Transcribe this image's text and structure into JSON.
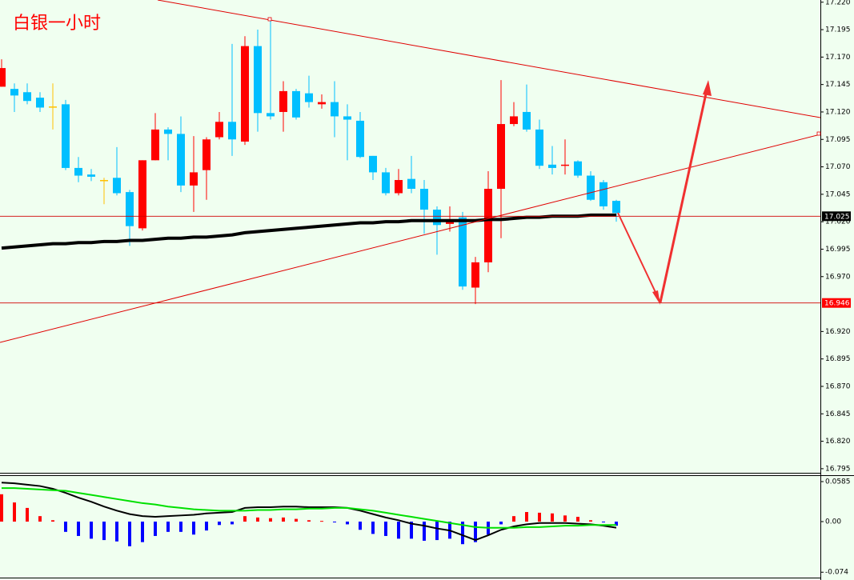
{
  "chart_data": [
    {
      "type": "candlestick",
      "title": "白银一小时",
      "open": [
        17.143,
        17.141,
        17.138,
        17.133,
        17.125,
        17.127,
        17.069,
        17.063,
        17.058,
        17.06,
        17.047,
        17.014,
        17.076,
        17.104,
        17.1,
        17.053,
        17.067,
        17.097,
        17.111,
        17.093,
        17.18,
        17.119,
        17.12,
        17.139,
        17.137,
        17.127,
        17.129,
        17.116,
        17.112,
        17.08,
        17.065,
        17.046,
        17.059,
        17.05,
        17.031,
        17.018,
        17.024,
        16.96,
        16.983,
        17.05,
        17.109,
        17.12,
        17.104,
        17.072,
        17.071,
        17.075,
        17.062,
        17.056,
        17.039
      ],
      "high": [
        17.168,
        17.146,
        17.146,
        17.138,
        17.146,
        17.131,
        17.079,
        17.068,
        17.06,
        17.088,
        17.049,
        17.076,
        17.119,
        17.106,
        17.116,
        17.098,
        17.097,
        17.12,
        17.182,
        17.189,
        17.195,
        17.204,
        17.148,
        17.141,
        17.153,
        17.136,
        17.148,
        17.127,
        17.12,
        17.08,
        17.069,
        17.068,
        17.08,
        17.058,
        17.034,
        17.034,
        17.029,
        16.988,
        17.066,
        17.149,
        17.129,
        17.145,
        17.113,
        17.089,
        17.095,
        17.076,
        17.066,
        17.058,
        17.04
      ],
      "low": [
        17.143,
        17.12,
        17.127,
        17.12,
        17.104,
        17.067,
        17.056,
        17.057,
        17.036,
        17.044,
        16.998,
        17.012,
        17.076,
        17.076,
        17.047,
        17.029,
        17.04,
        17.095,
        17.08,
        17.09,
        17.102,
        17.113,
        17.102,
        17.113,
        17.124,
        17.123,
        17.097,
        17.076,
        17.078,
        17.058,
        17.044,
        17.044,
        17.046,
        17.009,
        16.99,
        17.011,
        16.958,
        16.945,
        16.974,
        17.005,
        17.107,
        17.102,
        17.068,
        17.063,
        17.063,
        17.06,
        17.039,
        17.031,
        17.02
      ],
      "close": [
        17.16,
        17.135,
        17.13,
        17.124,
        17.125,
        17.069,
        17.062,
        17.061,
        17.058,
        17.046,
        17.016,
        17.076,
        17.104,
        17.1,
        17.053,
        17.065,
        17.095,
        17.111,
        17.095,
        17.18,
        17.119,
        17.116,
        17.139,
        17.115,
        17.129,
        17.129,
        17.116,
        17.113,
        17.079,
        17.065,
        17.046,
        17.058,
        17.05,
        17.031,
        17.017,
        17.022,
        16.961,
        16.983,
        17.05,
        17.109,
        17.116,
        17.104,
        17.071,
        17.069,
        17.072,
        17.062,
        17.04,
        17.034,
        17.028
      ],
      "up_color": "#ff0000",
      "down_color": "#00bfff",
      "doji_color": "#ffc000",
      "ma": {
        "color": "#000000",
        "values": [
          16.996,
          16.997,
          16.998,
          16.999,
          17.0,
          17.0,
          17.001,
          17.001,
          17.002,
          17.002,
          17.003,
          17.003,
          17.004,
          17.005,
          17.005,
          17.006,
          17.006,
          17.007,
          17.008,
          17.01,
          17.011,
          17.012,
          17.013,
          17.014,
          17.015,
          17.016,
          17.017,
          17.018,
          17.019,
          17.019,
          17.02,
          17.02,
          17.021,
          17.021,
          17.021,
          17.021,
          17.021,
          17.021,
          17.022,
          17.022,
          17.023,
          17.024,
          17.024,
          17.025,
          17.025,
          17.025,
          17.026,
          17.026,
          17.026
        ]
      },
      "ylim": [
        16.792,
        17.222
      ],
      "yticks": [
        {
          "value": 17.22,
          "label": "17.220"
        },
        17.195,
        {
          "value": 17.17,
          "label": "17.170"
        },
        17.145,
        {
          "value": 17.12,
          "label": "17.120"
        },
        17.095,
        {
          "value": 17.07,
          "label": "17.070"
        },
        17.045,
        {
          "value": 17.02,
          "label": "17.020"
        },
        16.995,
        {
          "value": 16.97,
          "label": "16.970"
        },
        {
          "value": 16.92,
          "label": "16.920"
        },
        16.895,
        {
          "value": 16.87,
          "label": "16.870"
        },
        16.845,
        {
          "value": 16.82,
          "label": "16.820"
        },
        16.795
      ],
      "price_lines": [
        {
          "value": 17.025,
          "color": "#000000"
        },
        {
          "value": 16.946,
          "color": "#ff0000"
        }
      ]
    },
    {
      "type": "macd",
      "histogram": {
        "up_color": "#ff0000",
        "down_color": "#0000ff",
        "values": [
          0.04,
          0.028,
          0.02,
          0.008,
          0.002,
          -0.015,
          -0.021,
          -0.025,
          -0.027,
          -0.029,
          -0.036,
          -0.03,
          -0.021,
          -0.015,
          -0.015,
          -0.019,
          -0.013,
          -0.005,
          -0.004,
          0.008,
          0.006,
          0.005,
          0.006,
          0.004,
          0.002,
          0.001,
          -0.001,
          -0.004,
          -0.012,
          -0.018,
          -0.021,
          -0.025,
          -0.025,
          -0.028,
          -0.027,
          -0.025,
          -0.033,
          -0.03,
          -0.019,
          -0.004,
          0.008,
          0.014,
          0.013,
          0.012,
          0.009,
          0.007,
          0.002,
          -0.001,
          -0.006
        ]
      },
      "series": [
        {
          "color": "#000000",
          "values": [
            0.057,
            0.056,
            0.054,
            0.052,
            0.048,
            0.042,
            0.035,
            0.029,
            0.022,
            0.016,
            0.011,
            0.008,
            0.007,
            0.008,
            0.009,
            0.01,
            0.012,
            0.013,
            0.014,
            0.02,
            0.021,
            0.021,
            0.022,
            0.022,
            0.021,
            0.021,
            0.021,
            0.02,
            0.016,
            0.011,
            0.006,
            0.002,
            -0.003,
            -0.006,
            -0.01,
            -0.013,
            -0.02,
            -0.027,
            -0.02,
            -0.012,
            -0.007,
            -0.004,
            -0.002,
            -0.002,
            -0.002,
            -0.003,
            -0.004,
            -0.006,
            -0.009
          ]
        },
        {
          "color": "#00e000",
          "values": [
            0.049,
            0.049,
            0.048,
            0.047,
            0.046,
            0.045,
            0.042,
            0.039,
            0.036,
            0.033,
            0.03,
            0.027,
            0.025,
            0.022,
            0.02,
            0.018,
            0.017,
            0.016,
            0.016,
            0.016,
            0.017,
            0.017,
            0.018,
            0.018,
            0.019,
            0.019,
            0.02,
            0.02,
            0.018,
            0.016,
            0.013,
            0.01,
            0.007,
            0.004,
            0.001,
            -0.002,
            -0.005,
            -0.008,
            -0.009,
            -0.009,
            -0.009,
            -0.008,
            -0.008,
            -0.007,
            -0.006,
            -0.006,
            -0.005,
            -0.005,
            -0.005
          ]
        }
      ],
      "ylim": [
        -0.0819,
        0.0667
      ],
      "yticks": [
        0.0585,
        {
          "value": 0,
          "label": "0.00"
        },
        -0.074
      ]
    }
  ]
}
